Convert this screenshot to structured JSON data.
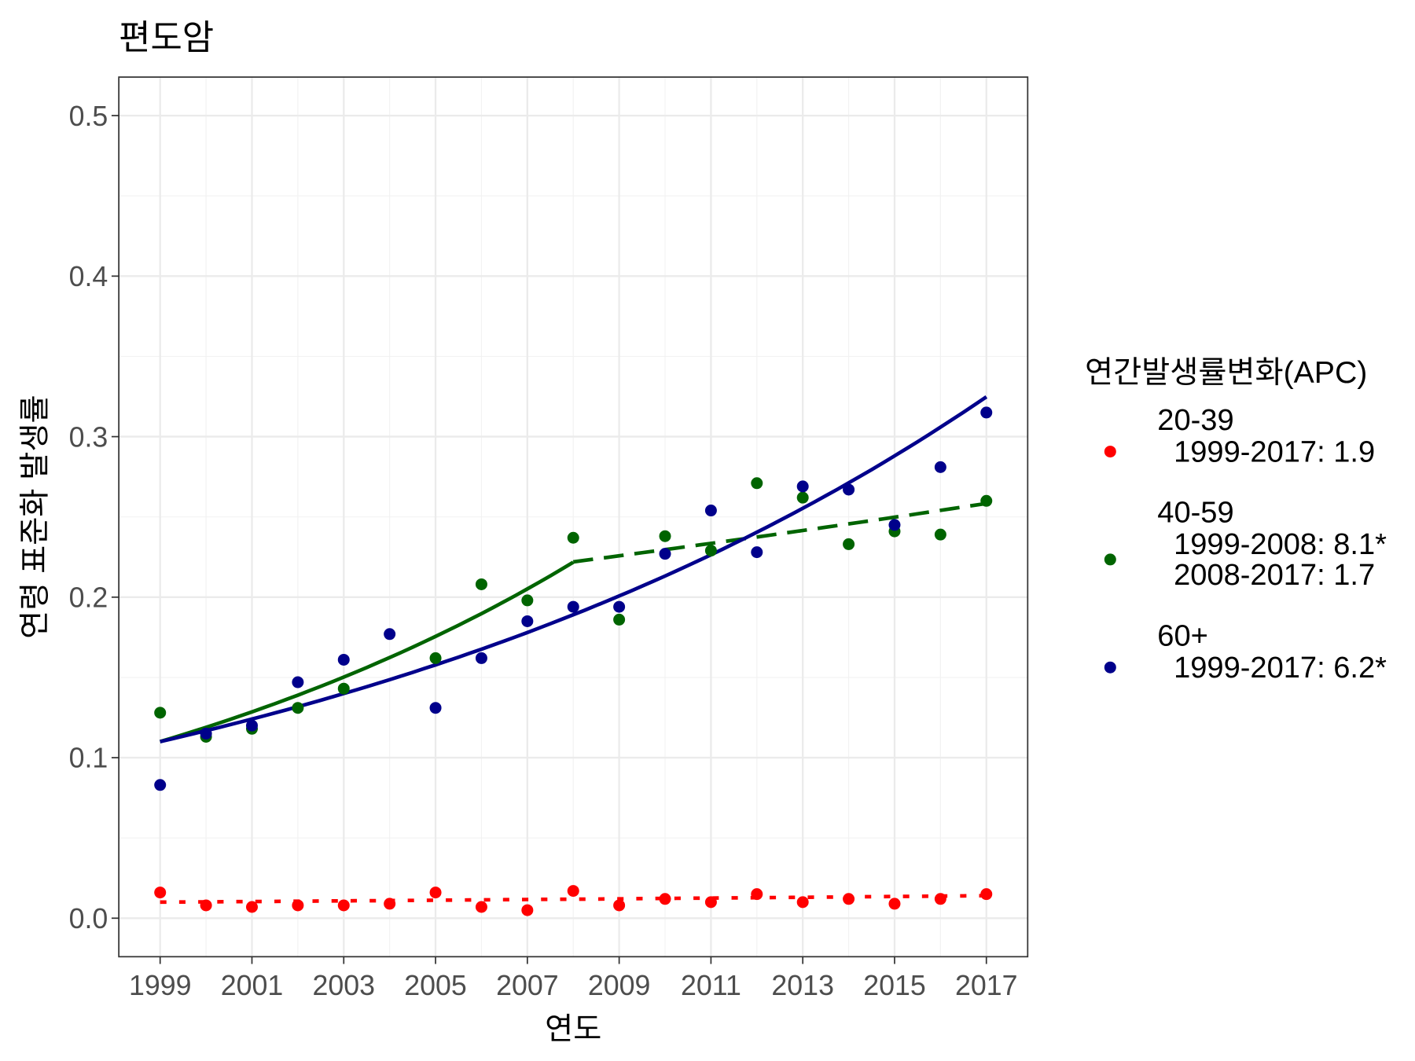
{
  "chart_data": {
    "type": "scatter",
    "title": "편도암",
    "xlabel": "연도",
    "ylabel": "연령 표준화 발생률",
    "xlim": [
      1998.1,
      2017.9
    ],
    "ylim": [
      -0.024,
      0.524
    ],
    "x_ticks": [
      1999,
      2001,
      2003,
      2005,
      2007,
      2009,
      2011,
      2013,
      2015,
      2017
    ],
    "x_tick_labels": [
      "1999",
      "2001",
      "2003",
      "2005",
      "2007",
      "2009",
      "2011",
      "2013",
      "2015",
      "2017"
    ],
    "y_ticks": [
      0.0,
      0.1,
      0.2,
      0.3,
      0.4,
      0.5
    ],
    "y_tick_labels": [
      "0.0",
      "0.1",
      "0.2",
      "0.3",
      "0.4",
      "0.5"
    ],
    "grid": true,
    "legend": {
      "title": "연간발생률변화(APC)",
      "position": "right",
      "entries": [
        {
          "name": "20-39",
          "lines": [
            "1999-2017: 1.9"
          ]
        },
        {
          "name": "40-59",
          "lines": [
            "1999-2008: 8.1*",
            "2008-2017: 1.7"
          ]
        },
        {
          "name": "60+",
          "lines": [
            "1999-2017: 6.2*"
          ]
        }
      ]
    },
    "x": [
      1999,
      2000,
      2001,
      2002,
      2003,
      2004,
      2005,
      2006,
      2007,
      2008,
      2009,
      2010,
      2011,
      2012,
      2013,
      2014,
      2015,
      2016,
      2017
    ],
    "series": [
      {
        "name": "20-39",
        "color": "#ff0000",
        "values": [
          0.016,
          0.008,
          0.007,
          0.008,
          0.008,
          0.009,
          0.016,
          0.007,
          0.005,
          0.017,
          0.008,
          0.012,
          0.01,
          0.015,
          0.01,
          0.012,
          0.009,
          0.012,
          0.015
        ],
        "fit": [
          {
            "from": 1999,
            "to": 2017,
            "start": 0.01,
            "apc": 1.9,
            "style": "dotted"
          }
        ]
      },
      {
        "name": "40-59",
        "color": "#006400",
        "values": [
          0.128,
          0.113,
          0.118,
          0.131,
          0.143,
          null,
          0.162,
          0.208,
          0.198,
          0.237,
          0.186,
          0.238,
          0.229,
          0.271,
          0.262,
          0.233,
          0.241,
          0.239,
          0.26
        ],
        "fit": [
          {
            "from": 1999,
            "to": 2008,
            "start": 0.11,
            "apc": 8.1,
            "style": "solid"
          },
          {
            "from": 2008,
            "to": 2017,
            "start": 0.222,
            "apc": 1.7,
            "style": "dashed"
          }
        ]
      },
      {
        "name": "60+",
        "color": "#00008b",
        "values": [
          0.083,
          0.115,
          0.12,
          0.147,
          0.161,
          0.177,
          0.131,
          0.162,
          0.185,
          0.194,
          0.194,
          0.227,
          0.254,
          0.228,
          0.269,
          0.267,
          0.245,
          0.281,
          0.315
        ],
        "fit": [
          {
            "from": 1999,
            "to": 2017,
            "start": 0.11,
            "apc": 6.2,
            "style": "solid"
          }
        ]
      }
    ]
  }
}
